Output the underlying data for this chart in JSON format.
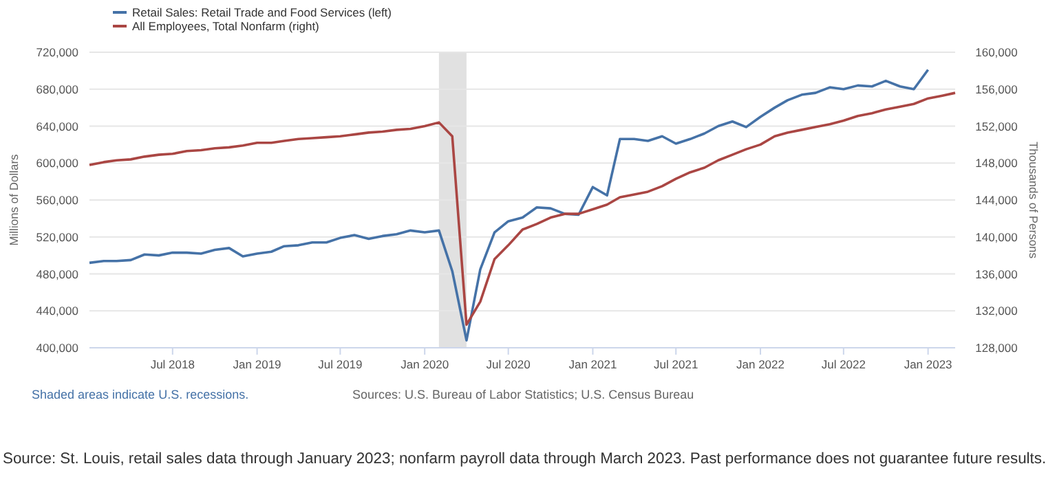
{
  "chart_data": {
    "type": "line",
    "xlim": [
      "2018-01",
      "2023-03"
    ],
    "xticks": [
      {
        "value": "2018-07",
        "label": "Jul 2018"
      },
      {
        "value": "2019-01",
        "label": "Jan 2019"
      },
      {
        "value": "2019-07",
        "label": "Jul 2019"
      },
      {
        "value": "2020-01",
        "label": "Jan 2020"
      },
      {
        "value": "2020-07",
        "label": "Jul 2020"
      },
      {
        "value": "2021-01",
        "label": "Jan 2021"
      },
      {
        "value": "2021-07",
        "label": "Jul 2021"
      },
      {
        "value": "2022-01",
        "label": "Jan 2022"
      },
      {
        "value": "2022-07",
        "label": "Jul 2022"
      },
      {
        "value": "2023-01",
        "label": "Jan 2023"
      }
    ],
    "ylim": [
      400000,
      720000
    ],
    "yticks": [
      {
        "value": 400000,
        "label": "400,000"
      },
      {
        "value": 440000,
        "label": "440,000"
      },
      {
        "value": 480000,
        "label": "480,000"
      },
      {
        "value": 520000,
        "label": "520,000"
      },
      {
        "value": 560000,
        "label": "560,000"
      },
      {
        "value": 600000,
        "label": "600,000"
      },
      {
        "value": 640000,
        "label": "640,000"
      },
      {
        "value": 680000,
        "label": "680,000"
      },
      {
        "value": 720000,
        "label": "720,000"
      }
    ],
    "y2lim": [
      128000,
      160000
    ],
    "y2ticks": [
      {
        "value": 128000,
        "label": "128,000"
      },
      {
        "value": 132000,
        "label": "132,000"
      },
      {
        "value": 136000,
        "label": "136,000"
      },
      {
        "value": 140000,
        "label": "140,000"
      },
      {
        "value": 144000,
        "label": "144,000"
      },
      {
        "value": 148000,
        "label": "148,000"
      },
      {
        "value": 152000,
        "label": "152,000"
      },
      {
        "value": 156000,
        "label": "156,000"
      },
      {
        "value": 160000,
        "label": "160,000"
      }
    ],
    "ylabel": "Millions of Dollars",
    "y2label": "Thousands of Persons",
    "grid": "y",
    "legend": "top left",
    "marker": "none",
    "line_style": "solid",
    "bands": [
      {
        "axis": "x",
        "from": "2020-02",
        "to": "2020-04",
        "color": "#e1e1e1"
      }
    ],
    "annotations": [
      "Shaded areas indicate U.S. recessions.",
      "Sources: U.S. Bureau of Labor Statistics; U.S. Census Bureau",
      "Source: St. Louis, retail sales data through January 2023; nonfarm payroll data through March 2023. Past performance does not guarantee future results."
    ],
    "series": [
      {
        "name": "Retail Sales: Retail Trade and Food Services (left)",
        "color": "#4572a7",
        "axis": "y",
        "x": [
          "2018-01",
          "2018-02",
          "2018-03",
          "2018-04",
          "2018-05",
          "2018-06",
          "2018-07",
          "2018-08",
          "2018-09",
          "2018-10",
          "2018-11",
          "2018-12",
          "2019-01",
          "2019-02",
          "2019-03",
          "2019-04",
          "2019-05",
          "2019-06",
          "2019-07",
          "2019-08",
          "2019-09",
          "2019-10",
          "2019-11",
          "2019-12",
          "2020-01",
          "2020-02",
          "2020-03",
          "2020-04",
          "2020-05",
          "2020-06",
          "2020-07",
          "2020-08",
          "2020-09",
          "2020-10",
          "2020-11",
          "2020-12",
          "2021-01",
          "2021-02",
          "2021-03",
          "2021-04",
          "2021-05",
          "2021-06",
          "2021-07",
          "2021-08",
          "2021-09",
          "2021-10",
          "2021-11",
          "2021-12",
          "2022-01",
          "2022-02",
          "2022-03",
          "2022-04",
          "2022-05",
          "2022-06",
          "2022-07",
          "2022-08",
          "2022-09",
          "2022-10",
          "2022-11",
          "2022-12",
          "2023-01"
        ],
        "values": [
          492000,
          494000,
          494000,
          495000,
          501000,
          500000,
          503000,
          503000,
          502000,
          506000,
          508000,
          499000,
          502000,
          504000,
          510000,
          511000,
          514000,
          514000,
          519000,
          522000,
          518000,
          521000,
          523000,
          527000,
          525000,
          527000,
          483000,
          408000,
          485000,
          525000,
          537000,
          541000,
          552000,
          551000,
          545000,
          544000,
          574000,
          565000,
          626000,
          626000,
          624000,
          629000,
          621000,
          626000,
          632000,
          640000,
          645000,
          639000,
          650000,
          660000,
          668000,
          674000,
          676000,
          682000,
          680000,
          684000,
          683000,
          689000,
          683000,
          680000,
          701000
        ]
      },
      {
        "name": "All Employees, Total Nonfarm (right)",
        "color": "#aa4643",
        "axis": "y2",
        "x": [
          "2018-01",
          "2018-02",
          "2018-03",
          "2018-04",
          "2018-05",
          "2018-06",
          "2018-07",
          "2018-08",
          "2018-09",
          "2018-10",
          "2018-11",
          "2018-12",
          "2019-01",
          "2019-02",
          "2019-03",
          "2019-04",
          "2019-05",
          "2019-06",
          "2019-07",
          "2019-08",
          "2019-09",
          "2019-10",
          "2019-11",
          "2019-12",
          "2020-01",
          "2020-02",
          "2020-03",
          "2020-04",
          "2020-05",
          "2020-06",
          "2020-07",
          "2020-08",
          "2020-09",
          "2020-10",
          "2020-11",
          "2020-12",
          "2021-01",
          "2021-02",
          "2021-03",
          "2021-04",
          "2021-05",
          "2021-06",
          "2021-07",
          "2021-08",
          "2021-09",
          "2021-10",
          "2021-11",
          "2021-12",
          "2022-01",
          "2022-02",
          "2022-03",
          "2022-04",
          "2022-05",
          "2022-06",
          "2022-07",
          "2022-08",
          "2022-09",
          "2022-10",
          "2022-11",
          "2022-12",
          "2023-01",
          "2023-02",
          "2023-03"
        ],
        "values": [
          147800,
          148100,
          148300,
          148400,
          148700,
          148900,
          149000,
          149300,
          149400,
          149600,
          149700,
          149900,
          150200,
          150200,
          150400,
          150600,
          150700,
          150800,
          150900,
          151100,
          151300,
          151400,
          151600,
          151700,
          152000,
          152400,
          150900,
          130500,
          133000,
          137600,
          139100,
          140800,
          141400,
          142100,
          142500,
          142500,
          143000,
          143500,
          144300,
          144600,
          144900,
          145500,
          146300,
          147000,
          147500,
          148300,
          148900,
          149500,
          150000,
          150900,
          151300,
          151600,
          151900,
          152200,
          152600,
          153100,
          153400,
          153800,
          154100,
          154400,
          155000,
          155300,
          155600
        ]
      }
    ]
  }
}
